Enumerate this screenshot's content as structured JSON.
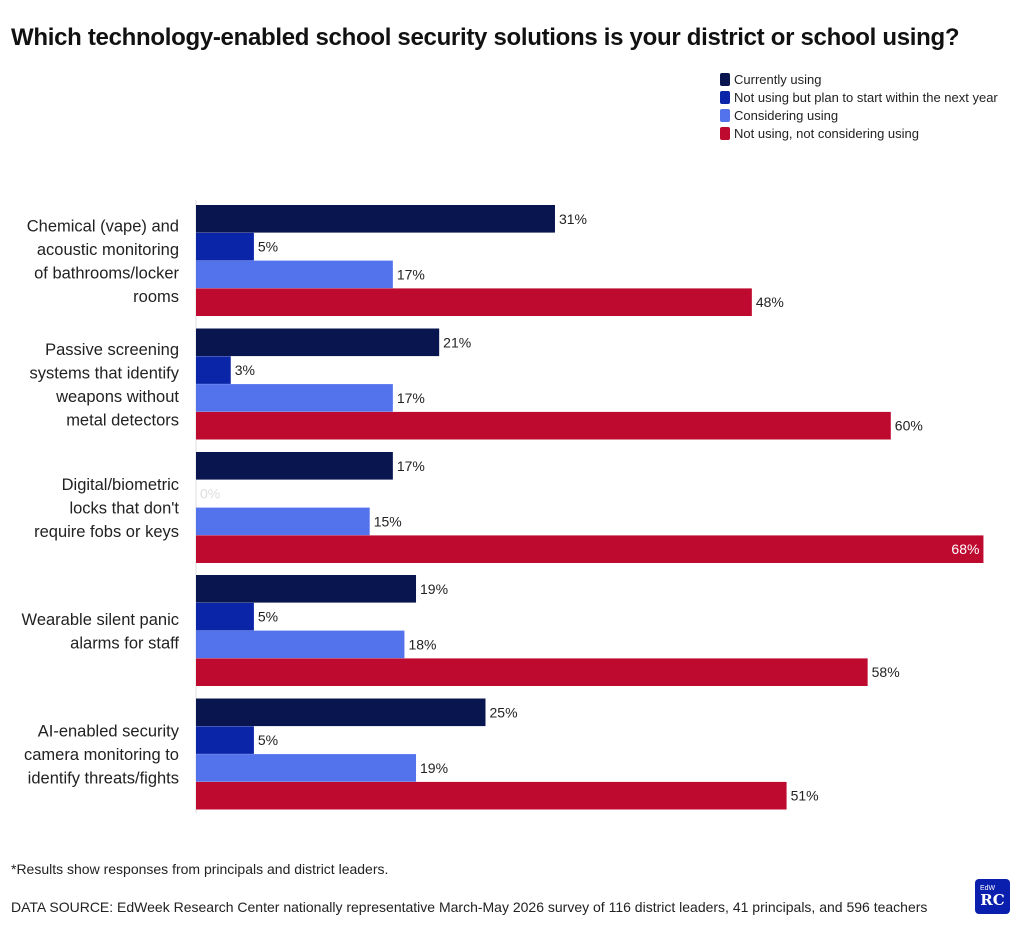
{
  "title": "Which technology-enabled school security solutions is your district or school using?",
  "legend": [
    {
      "label": "Currently using",
      "color": "#08154f"
    },
    {
      "label": "Not using but plan to start within the next year",
      "color": "#0b25a8"
    },
    {
      "label": "Considering using",
      "color": "#5373ed"
    },
    {
      "label": "Not using, not considering using",
      "color": "#bf0a30"
    }
  ],
  "chart_data": {
    "type": "bar",
    "orientation": "horizontal",
    "categories": [
      "Chemical (vape) and acoustic monitoring of bathrooms/locker rooms",
      "Passive screening systems that identify weapons without metal detectors",
      "Digital/biometric locks that don't require fobs or keys",
      "Wearable silent panic alarms for staff",
      "AI-enabled security camera monitoring to identify threats/fights"
    ],
    "category_lines": [
      [
        "Chemical (vape) and",
        "acoustic monitoring",
        "of bathrooms/locker",
        "rooms"
      ],
      [
        "Passive screening",
        "systems that identify",
        "weapons without",
        "metal detectors"
      ],
      [
        "Digital/biometric",
        "locks that don't",
        "require fobs or keys"
      ],
      [
        "Wearable silent panic",
        "alarms for staff"
      ],
      [
        "AI-enabled security",
        "camera monitoring to",
        "identify threats/fights"
      ]
    ],
    "series": [
      {
        "name": "Currently using",
        "color": "#08154f",
        "values": [
          31,
          21,
          17,
          19,
          25
        ],
        "labels": [
          "31%",
          "21%",
          "17%",
          "19%",
          "25%"
        ]
      },
      {
        "name": "Not using but plan to start within the next year",
        "color": "#0b25a8",
        "values": [
          5,
          3,
          0,
          5,
          5
        ],
        "labels": [
          "5%",
          "3%",
          "0%",
          "5%",
          "5%"
        ]
      },
      {
        "name": "Considering using",
        "color": "#5373ed",
        "values": [
          17,
          17,
          15,
          18,
          19
        ],
        "labels": [
          "17%",
          "17%",
          "15%",
          "18%",
          "19%"
        ]
      },
      {
        "name": "Not using, not considering using",
        "color": "#bf0a30",
        "values": [
          48,
          60,
          68,
          58,
          51
        ],
        "labels": [
          "48%",
          "60%",
          "68%",
          "58%",
          "51%"
        ]
      }
    ],
    "xlim": [
      0,
      68
    ],
    "value_unit": "%",
    "grid": false,
    "legend_position": "top-right"
  },
  "note": "*Results show responses from principals and district leaders.",
  "source": "DATA SOURCE: EdWeek Research Center nationally representative March-May 2026 survey of 116 district leaders, 41 principals, and 596 teachers",
  "logo": {
    "top": "EdW",
    "main": "RC"
  }
}
